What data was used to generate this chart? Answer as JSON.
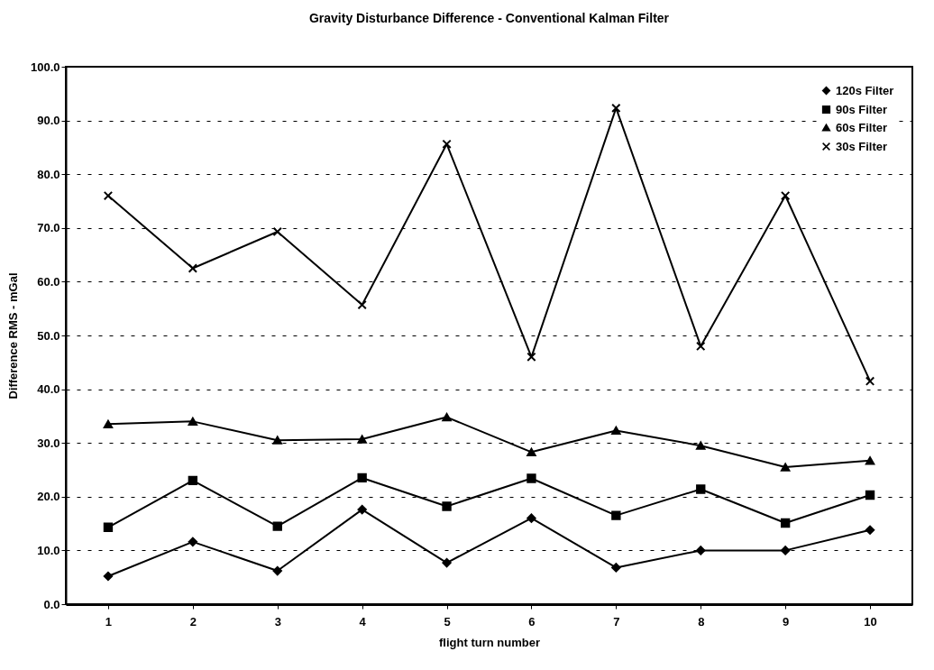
{
  "chart_data": {
    "type": "line",
    "title": "Gravity Disturbance Difference - Conventional Kalman Filter",
    "xlabel": "flight turn number",
    "ylabel": "Difference RMS - mGal",
    "categories": [
      "1",
      "2",
      "3",
      "4",
      "5",
      "6",
      "7",
      "8",
      "9",
      "10"
    ],
    "series": [
      {
        "name": "120s Filter",
        "color": "#000000",
        "marker": "diamond",
        "values": [
          5.2,
          11.6,
          6.2,
          17.6,
          7.7,
          16.0,
          6.8,
          10.0,
          10.0,
          13.8
        ]
      },
      {
        "name": "90s Filter",
        "color": "#000000",
        "marker": "square",
        "values": [
          14.3,
          23.0,
          14.5,
          23.5,
          18.2,
          23.4,
          16.5,
          21.4,
          15.1,
          20.3
        ]
      },
      {
        "name": "60s Filter",
        "color": "#000000",
        "marker": "triangle",
        "values": [
          33.5,
          34.0,
          30.5,
          30.7,
          34.8,
          28.3,
          32.3,
          29.5,
          25.5,
          26.7
        ]
      },
      {
        "name": "30s Filter",
        "color": "#000000",
        "marker": "cross",
        "values": [
          76.0,
          62.5,
          69.3,
          55.7,
          85.6,
          46.0,
          92.3,
          48.0,
          76.0,
          41.5
        ]
      }
    ],
    "ylim": [
      0,
      100
    ],
    "yticks": [
      {
        "value": 0,
        "label": "0.0"
      },
      {
        "value": 10,
        "label": "10.0"
      },
      {
        "value": 20,
        "label": "20.0"
      },
      {
        "value": 30,
        "label": "30.0"
      },
      {
        "value": 40,
        "label": "40.0"
      },
      {
        "value": 50,
        "label": "50.0"
      },
      {
        "value": 60,
        "label": "60.0"
      },
      {
        "value": 70,
        "label": "70.0"
      },
      {
        "value": 80,
        "label": "80.0"
      },
      {
        "value": 90,
        "label": "90.0"
      },
      {
        "value": 100,
        "label": "100.0"
      }
    ],
    "grid": "y",
    "legend": "top right",
    "line_style": "solid"
  }
}
